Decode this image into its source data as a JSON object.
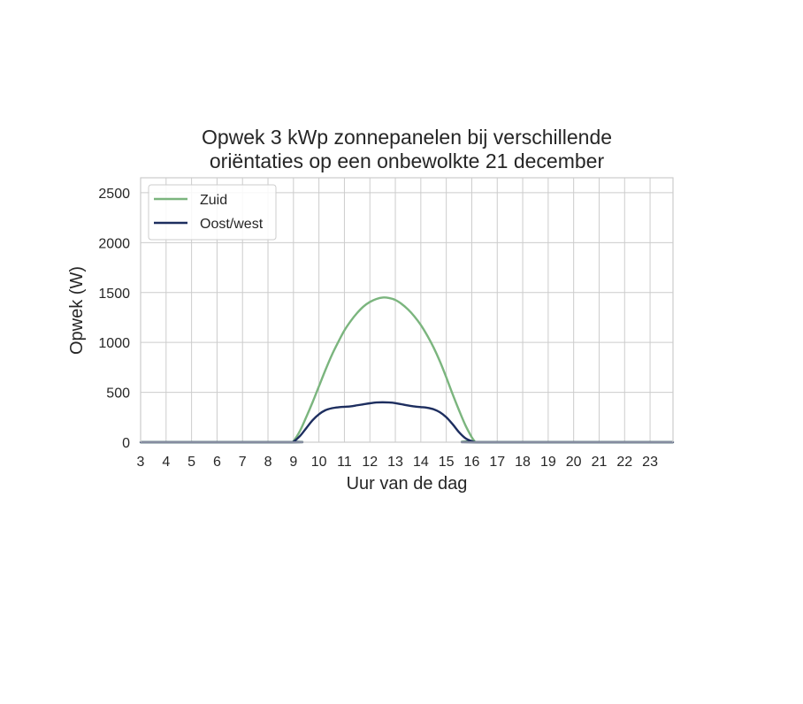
{
  "chart_data": {
    "type": "line",
    "title_lines": [
      "Opwek 3 kWp zonnepanelen bij verschillende",
      "oriëntaties op een onbewolkte 21 december"
    ],
    "xlabel": "Uur van de dag",
    "ylabel": "Opwek (W)",
    "xlim": [
      3,
      23.9
    ],
    "ylim": [
      0,
      2650
    ],
    "xticks": [
      3,
      4,
      5,
      6,
      7,
      8,
      9,
      10,
      11,
      12,
      13,
      14,
      15,
      16,
      17,
      18,
      19,
      20,
      21,
      22,
      23
    ],
    "yticks": [
      0,
      500,
      1000,
      1500,
      2000,
      2500
    ],
    "grid": true,
    "legend_position": "upper-left",
    "series": [
      {
        "name": "Zuid",
        "color": "#7bb57e",
        "x": [
          3,
          8.9,
          9.0,
          9.25,
          9.5,
          9.75,
          10.0,
          10.25,
          10.5,
          10.75,
          11.0,
          11.25,
          11.5,
          11.75,
          12.0,
          12.25,
          12.5,
          12.75,
          13.0,
          13.25,
          13.5,
          13.75,
          14.0,
          14.25,
          14.5,
          14.75,
          15.0,
          15.25,
          15.5,
          15.75,
          16.0,
          16.1,
          16.2,
          23.9
        ],
        "y": [
          0,
          0,
          10,
          110,
          250,
          400,
          560,
          720,
          870,
          1000,
          1120,
          1215,
          1295,
          1360,
          1405,
          1435,
          1450,
          1445,
          1425,
          1385,
          1330,
          1260,
          1175,
          1070,
          950,
          810,
          650,
          480,
          320,
          170,
          50,
          15,
          0,
          0
        ]
      },
      {
        "name": "Oost/west",
        "color": "#1d2e5f",
        "x": [
          3,
          8.9,
          9.0,
          9.25,
          9.5,
          9.75,
          10.0,
          10.25,
          10.5,
          10.75,
          11.0,
          11.25,
          11.5,
          11.75,
          12.0,
          12.25,
          12.5,
          12.75,
          13.0,
          13.25,
          13.5,
          13.75,
          14.0,
          14.25,
          14.5,
          14.75,
          15.0,
          15.25,
          15.5,
          15.75,
          16.0,
          16.1,
          16.2,
          23.9
        ],
        "y": [
          0,
          0,
          5,
          60,
          140,
          220,
          280,
          320,
          340,
          350,
          355,
          360,
          370,
          380,
          390,
          398,
          400,
          398,
          392,
          380,
          368,
          358,
          352,
          345,
          330,
          300,
          250,
          180,
          100,
          40,
          10,
          3,
          0,
          0
        ]
      }
    ]
  }
}
